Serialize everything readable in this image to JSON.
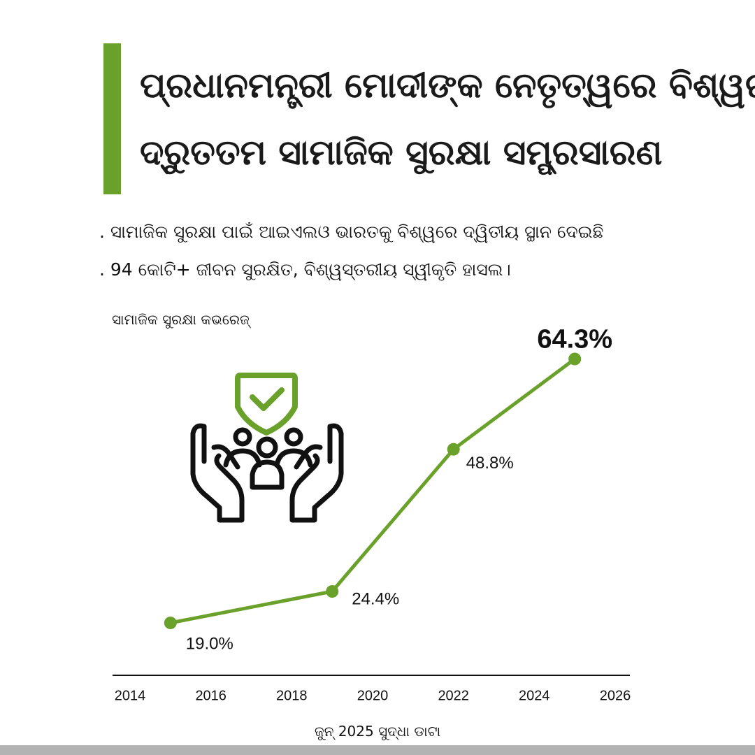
{
  "header": {
    "title_lines": [
      "ପ୍ରଧାନମନ୍ତ୍ରୀ ମୋଦୀଙ୍କ ନେତୃତ୍ୱରେ ବିଶ୍ୱର",
      "ଦ୍ରୁତତମ ସାମାଜିକ ସୁରକ୍ଷା ସମ୍ପ୍ରସାରଣ"
    ]
  },
  "bullets": [
    ". ସାମାଜିକ ସୁରକ୍ଷା ପାଇଁ ଆଇଏଲଓ ଭାରତକୁ ବିଶ୍ୱରେ ଦ୍ୱିତୀୟ ସ୍ଥାନ ଦେଇଛି",
    ". 94 କୋଟି+ ଜୀବନ ସୁରକ୍ଷିତ, ବିଶ୍ୱସ୍ତରୀୟ ସ୍ୱୀକୃତି ହାସଲ।"
  ],
  "footnote": "ଜୁନ୍ 2025 ସୁଦ୍ଧା ଡାଟା",
  "colors": {
    "accent": "#6aa12a",
    "line": "#6aa12a",
    "text": "#111111",
    "axis": "#111111",
    "strip": "#b3b3b3"
  },
  "illustration": {
    "icon": "hands-protecting-family-shield-check-icon"
  },
  "chart_data": {
    "type": "line",
    "title": "ସାମାଜିକ ସୁରକ୍ଷା କଭରେଜ୍",
    "x": [
      2015,
      2019,
      2022,
      2025
    ],
    "values": [
      19.0,
      24.4,
      48.8,
      64.3
    ],
    "data_labels": [
      "19.0%",
      "24.4%",
      "48.8%",
      "64.3%"
    ],
    "xticks": [
      2014,
      2016,
      2018,
      2020,
      2022,
      2024,
      2026
    ],
    "xtick_labels": [
      "2014",
      "2016",
      "2018",
      "2020",
      "2022",
      "2024",
      "2026"
    ],
    "xlim": [
      2014,
      2026
    ],
    "ylim": [
      10,
      70
    ],
    "xlabel": "",
    "ylabel": "",
    "grid": false,
    "legend": "none"
  }
}
